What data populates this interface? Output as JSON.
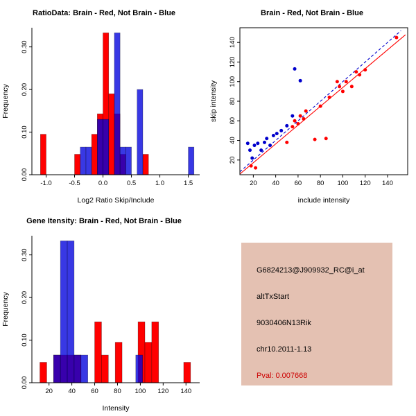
{
  "colors": {
    "brain": "#ff0000",
    "not_brain": "#0000dd",
    "info_background": "#e4c1b2",
    "pval_text": "#cc0000",
    "axis": "#000000"
  },
  "info": {
    "probe_id": "G6824213@J909932_RC@i_at",
    "event_type": "altTxStart",
    "gene_symbol": "9030406N13Rik",
    "location": "chr10.2011-1.13",
    "pval": "Pval: 0.007668"
  },
  "chart_data": [
    {
      "id": "ratio_hist",
      "type": "bar",
      "variant": "histogram",
      "title": "RatioData: Brain - Red, Not Brain - Blue",
      "xlabel": "Log2 Ratio Skip/Include",
      "ylabel": "Frequency",
      "xlim": [
        -1.25,
        1.7
      ],
      "ylim": [
        0,
        0.345
      ],
      "xticks": [
        -1.0,
        -0.5,
        0.0,
        0.5,
        1.0,
        1.5
      ],
      "xtick_labels": [
        "-1.0",
        "-0.5",
        "0.0",
        "0.5",
        "1.0",
        "1.5"
      ],
      "yticks": [
        0,
        0.1,
        0.2,
        0.3
      ],
      "ytick_labels": [
        "0.00",
        "0.10",
        "0.20",
        "0.30"
      ],
      "bin_width": 0.1,
      "legend": "none",
      "series": [
        {
          "name": "Brain",
          "color": "#ff0000",
          "opacity": 1,
          "bins": [
            [
              -1.1,
              0.095
            ],
            [
              -0.5,
              0.048
            ],
            [
              -0.2,
              0.095
            ],
            [
              -0.1,
              0.143
            ],
            [
              0.0,
              0.333
            ],
            [
              0.1,
              0.19
            ],
            [
              0.2,
              0.143
            ],
            [
              0.3,
              0.048
            ],
            [
              0.7,
              0.048
            ]
          ]
        },
        {
          "name": "Not Brain",
          "color": "#0000dd",
          "opacity": 0.78,
          "bins": [
            [
              -0.4,
              0.065
            ],
            [
              -0.3,
              0.065
            ],
            [
              -0.1,
              0.13
            ],
            [
              0.0,
              0.13
            ],
            [
              0.2,
              0.333
            ],
            [
              0.3,
              0.065
            ],
            [
              0.4,
              0.065
            ],
            [
              0.6,
              0.2
            ],
            [
              1.5,
              0.065
            ]
          ]
        }
      ]
    },
    {
      "id": "scatter",
      "type": "scatter",
      "title": "Brain - Red, Not Brain - Blue",
      "xlabel": "include intensity",
      "ylabel": "skip intensity",
      "xlim": [
        8,
        158
      ],
      "ylim": [
        5,
        155
      ],
      "xticks": [
        20,
        40,
        60,
        80,
        100,
        120,
        140
      ],
      "xtick_labels": [
        "20",
        "40",
        "60",
        "80",
        "100",
        "120",
        "140"
      ],
      "yticks": [
        20,
        40,
        60,
        80,
        100,
        120,
        140
      ],
      "ytick_labels": [
        "20",
        "40",
        "60",
        "80",
        "100",
        "120",
        "140"
      ],
      "legend": "none",
      "series": [
        {
          "name": "Brain",
          "color": "#ff0000",
          "points": [
            [
              18,
              14
            ],
            [
              22,
              12
            ],
            [
              50,
              38
            ],
            [
              55,
              54
            ],
            [
              57,
              60
            ],
            [
              60,
              57
            ],
            [
              62,
              65
            ],
            [
              65,
              62
            ],
            [
              67,
              70
            ],
            [
              75,
              41
            ],
            [
              80,
              75
            ],
            [
              85,
              42
            ],
            [
              88,
              84
            ],
            [
              95,
              100
            ],
            [
              97,
              95
            ],
            [
              100,
              90
            ],
            [
              103,
              100
            ],
            [
              108,
              95
            ],
            [
              112,
              110
            ],
            [
              115,
              107
            ],
            [
              120,
              112
            ],
            [
              148,
              145
            ]
          ]
        },
        {
          "name": "Not Brain",
          "color": "#0000cc",
          "points": [
            [
              15,
              37
            ],
            [
              17,
              30
            ],
            [
              19,
              22
            ],
            [
              21,
              35
            ],
            [
              24,
              37
            ],
            [
              27,
              30
            ],
            [
              30,
              38
            ],
            [
              32,
              42
            ],
            [
              35,
              35
            ],
            [
              38,
              45
            ],
            [
              41,
              47
            ],
            [
              45,
              50
            ],
            [
              50,
              55
            ],
            [
              55,
              65
            ],
            [
              57,
              113
            ],
            [
              62,
              101
            ]
          ]
        }
      ],
      "lines": [
        {
          "name": "identity",
          "color": "#0000cc",
          "dash": "4,3",
          "x1": 8,
          "y1": 8,
          "x2": 152,
          "y2": 152
        },
        {
          "name": "fit",
          "color": "#ff0000",
          "dash": "",
          "x1": 8,
          "y1": 5.7,
          "x2": 156,
          "y2": 147.8
        }
      ]
    },
    {
      "id": "gene_hist",
      "type": "bar",
      "variant": "histogram",
      "title": "Gene Itensity: Brain - Red, Not Brain - Blue",
      "xlabel": "Intensity",
      "ylabel": "Frequency",
      "xlim": [
        5,
        152
      ],
      "ylim": [
        0,
        0.345
      ],
      "xticks": [
        20,
        40,
        60,
        80,
        100,
        120,
        140
      ],
      "xtick_labels": [
        "20",
        "40",
        "60",
        "80",
        "100",
        "120",
        "140"
      ],
      "yticks": [
        0,
        0.1,
        0.2,
        0.3
      ],
      "ytick_labels": [
        "0.00",
        "0.10",
        "0.20",
        "0.30"
      ],
      "bin_width": 6,
      "legend": "none",
      "series": [
        {
          "name": "Brain",
          "color": "#ff0000",
          "opacity": 1,
          "bins": [
            [
              12,
              0.048
            ],
            [
              24,
              0.065
            ],
            [
              30,
              0.065
            ],
            [
              36,
              0.065
            ],
            [
              42,
              0.065
            ],
            [
              60,
              0.143
            ],
            [
              66,
              0.065
            ],
            [
              78,
              0.095
            ],
            [
              98,
              0.143
            ],
            [
              104,
              0.095
            ],
            [
              110,
              0.143
            ],
            [
              138,
              0.048
            ]
          ]
        },
        {
          "name": "Not Brain",
          "color": "#0000dd",
          "opacity": 0.78,
          "bins": [
            [
              24,
              0.065
            ],
            [
              30,
              0.333
            ],
            [
              36,
              0.333
            ],
            [
              42,
              0.065
            ],
            [
              48,
              0.065
            ],
            [
              96,
              0.065
            ]
          ]
        }
      ]
    }
  ]
}
